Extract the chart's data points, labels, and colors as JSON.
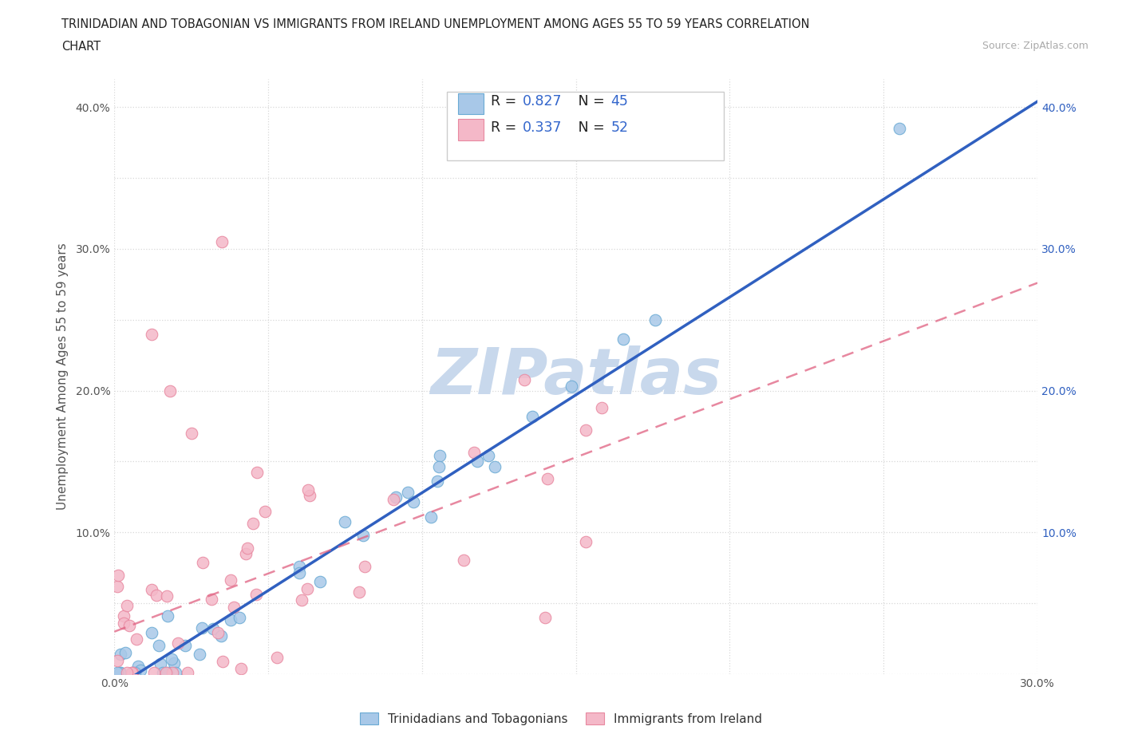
{
  "title_line1": "TRINIDADIAN AND TOBAGONIAN VS IMMIGRANTS FROM IRELAND UNEMPLOYMENT AMONG AGES 55 TO 59 YEARS CORRELATION",
  "title_line2": "CHART",
  "source_text": "Source: ZipAtlas.com",
  "ylabel": "Unemployment Among Ages 55 to 59 years",
  "xlim": [
    0.0,
    0.3
  ],
  "ylim": [
    0.0,
    0.42
  ],
  "xtick_positions": [
    0.0,
    0.05,
    0.1,
    0.15,
    0.2,
    0.25,
    0.3
  ],
  "xtick_labels": [
    "0.0%",
    "",
    "",
    "",
    "",
    "",
    "30.0%"
  ],
  "ytick_positions": [
    0.0,
    0.05,
    0.1,
    0.15,
    0.2,
    0.25,
    0.3,
    0.35,
    0.4
  ],
  "ytick_labels": [
    "",
    "",
    "10.0%",
    "",
    "20.0%",
    "",
    "30.0%",
    "",
    "40.0%"
  ],
  "blue_fill": "#a8c8e8",
  "blue_edge": "#6aaad4",
  "pink_fill": "#f4b8c8",
  "pink_edge": "#e888a0",
  "line_blue_color": "#3060c0",
  "line_pink_color": "#e06080",
  "watermark_color": "#c8d8ec",
  "R_blue": 0.827,
  "N_blue": 45,
  "R_pink": 0.337,
  "N_pink": 52,
  "blue_line_slope": 1.38,
  "blue_line_intercept": -0.01,
  "pink_line_slope": 0.82,
  "pink_line_intercept": 0.03,
  "background_color": "#ffffff",
  "grid_color": "#d8d8d8",
  "marker_size": 110,
  "legend_value_color": "#3366cc",
  "bottom_legend_labels": [
    "Trinidadians and Tobagonians",
    "Immigrants from Ireland"
  ]
}
